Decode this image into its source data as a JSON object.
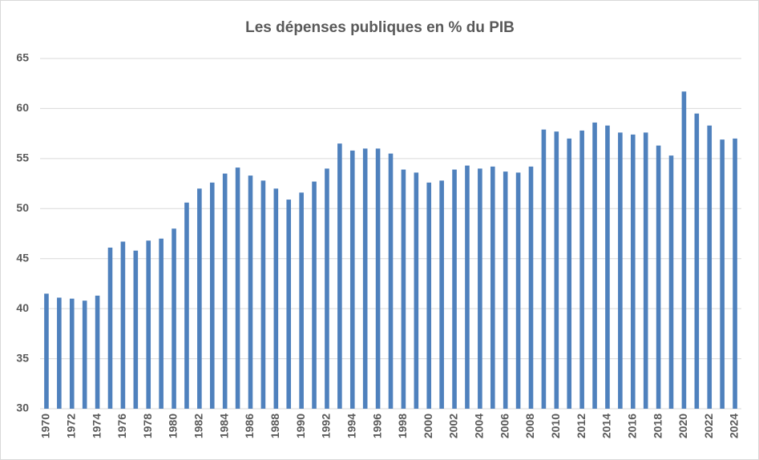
{
  "chart_data": {
    "type": "bar",
    "title": "Les dépenses publiques  en % du PIB",
    "categories": [
      "1970",
      null,
      "1972",
      null,
      "1974",
      null,
      "1976",
      null,
      "1978",
      null,
      "1980",
      null,
      "1982",
      null,
      "1984",
      null,
      "1986",
      null,
      "1988",
      null,
      "1990",
      null,
      "1992",
      null,
      "1994",
      null,
      "1996",
      null,
      "1998",
      null,
      "2000",
      null,
      "2002",
      null,
      "2004",
      null,
      "2006",
      null,
      "2008",
      null,
      "2010",
      null,
      "2012",
      null,
      "2014",
      null,
      "2016",
      null,
      "2018",
      null,
      "2020",
      null,
      "2022",
      null,
      "2024"
    ],
    "values": [
      41.5,
      41.1,
      41.0,
      40.8,
      41.3,
      46.1,
      46.7,
      45.8,
      46.8,
      47.0,
      48.0,
      50.6,
      52.0,
      52.6,
      53.5,
      54.1,
      53.3,
      52.8,
      52.0,
      50.9,
      51.6,
      52.7,
      54.0,
      56.5,
      55.8,
      56.0,
      56.0,
      55.5,
      53.9,
      53.6,
      52.6,
      52.8,
      53.9,
      54.3,
      54.0,
      54.2,
      53.7,
      53.6,
      54.2,
      57.9,
      57.7,
      57.0,
      57.8,
      58.6,
      58.3,
      57.6,
      57.4,
      57.6,
      56.3,
      55.3,
      61.7,
      59.5,
      58.3,
      56.9,
      57.0
    ],
    "color": "#4f81bd",
    "ylim": [
      30,
      65
    ],
    "yticks": [
      30,
      35,
      40,
      45,
      50,
      55,
      60,
      65
    ],
    "grid": true
  }
}
